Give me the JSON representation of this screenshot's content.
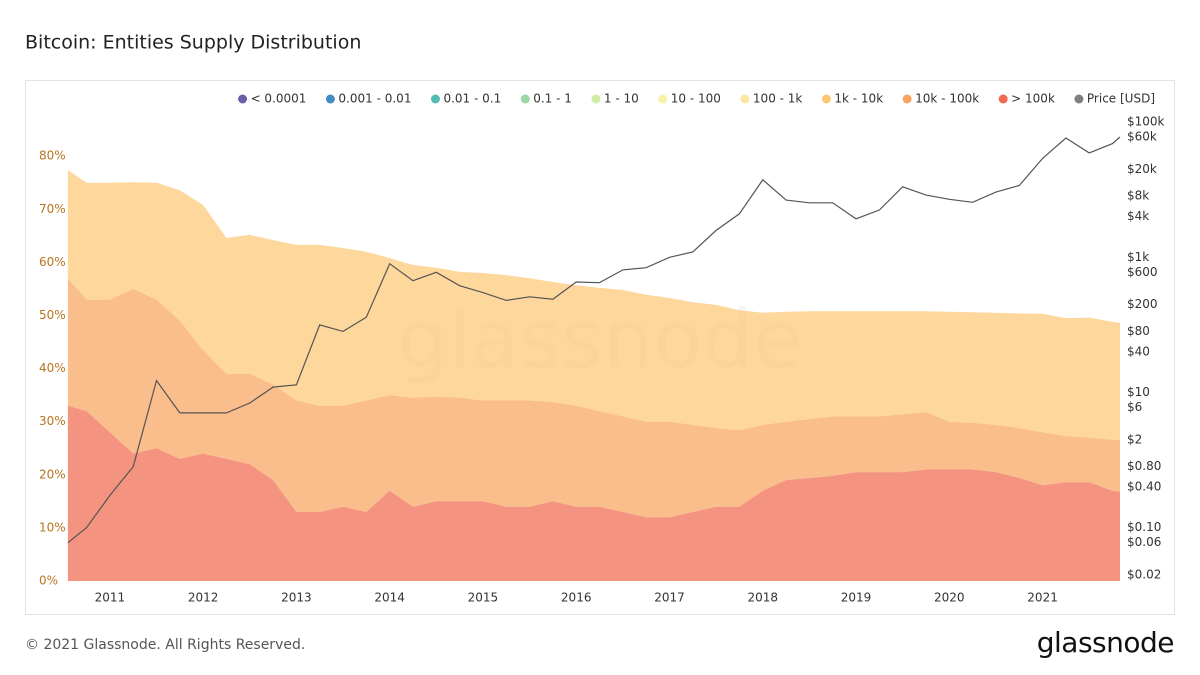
{
  "chart_data": {
    "type": "stacked_area",
    "title": "Bitcoin: Entities Supply Distribution",
    "watermark": "glassnode",
    "footer": "© 2021 Glassnode. All Rights Reserved.",
    "logo": "glassnode",
    "x": [
      2010.55,
      2010.75,
      2011,
      2011.25,
      2011.5,
      2011.75,
      2012,
      2012.25,
      2012.5,
      2012.75,
      2013,
      2013.25,
      2013.5,
      2013.75,
      2014,
      2014.25,
      2014.5,
      2014.75,
      2015,
      2015.25,
      2015.5,
      2015.75,
      2016,
      2016.25,
      2016.5,
      2016.75,
      2017,
      2017.25,
      2017.5,
      2017.75,
      2018,
      2018.25,
      2018.5,
      2018.75,
      2019,
      2019.25,
      2019.5,
      2019.75,
      2020,
      2020.25,
      2020.5,
      2020.75,
      2021,
      2021.25,
      2021.5,
      2021.75,
      2021.83
    ],
    "xlim": [
      2010.53,
      2021.83
    ],
    "xticks": [
      2011,
      2012,
      2013,
      2014,
      2015,
      2016,
      2017,
      2018,
      2019,
      2020,
      2021
    ],
    "ylim": [
      0,
      88
    ],
    "yticks": [
      {
        "value": 0,
        "label": "0%"
      },
      {
        "value": 10,
        "label": "10%"
      },
      {
        "value": 20,
        "label": "20%"
      },
      {
        "value": 30,
        "label": "30%"
      },
      {
        "value": 40,
        "label": "40%"
      },
      {
        "value": 50,
        "label": "50%"
      },
      {
        "value": 60,
        "label": "60%"
      },
      {
        "value": 70,
        "label": "70%"
      },
      {
        "value": 80,
        "label": "80%"
      }
    ],
    "y2lim": [
      0.0163,
      132800
    ],
    "y2_log_scale": true,
    "y2ticks": [
      {
        "value": 100000,
        "label": "$100k"
      },
      {
        "value": 60000,
        "label": "$60k"
      },
      {
        "value": 20000,
        "label": "$20k"
      },
      {
        "value": 8000,
        "label": "$8k"
      },
      {
        "value": 4000,
        "label": "$4k"
      },
      {
        "value": 1000,
        "label": "$1k"
      },
      {
        "value": 600,
        "label": "$600"
      },
      {
        "value": 200,
        "label": "$200"
      },
      {
        "value": 80,
        "label": "$80"
      },
      {
        "value": 40,
        "label": "$40"
      },
      {
        "value": 10,
        "label": "$10"
      },
      {
        "value": 6,
        "label": "$6"
      },
      {
        "value": 2,
        "label": "$2"
      },
      {
        "value": 0.8,
        "label": "$0.80"
      },
      {
        "value": 0.4,
        "label": "$0.40"
      },
      {
        "value": 0.1,
        "label": "$0.10"
      },
      {
        "value": 0.06,
        "label": "$0.06"
      },
      {
        "value": 0.02,
        "label": "$0.02"
      }
    ],
    "grid": false,
    "legend": "top",
    "hidden_series": [
      {
        "name": "< 0.0001",
        "color": "#5b4ea0"
      },
      {
        "name": "0.001 - 0.01",
        "color": "#2f7fbf"
      },
      {
        "name": "0.01 - 0.1",
        "color": "#3fb5aa"
      },
      {
        "name": "0.1 - 1",
        "color": "#8fd39a"
      },
      {
        "name": "1 - 10",
        "color": "#c9ea98"
      },
      {
        "name": "10 - 100",
        "color": "#f6f0a0"
      },
      {
        "name": "100 - 1k",
        "color": "#fde39a"
      }
    ],
    "series": [
      {
        "name": "1k - 10k",
        "color": "#fdc876",
        "values": [
          20.4,
          22,
          22,
          20.1,
          22,
          24.6,
          27.3,
          25.6,
          26.2,
          27.2,
          29.3,
          30.3,
          29.7,
          28,
          25.8,
          25,
          24.3,
          23.7,
          24,
          23.6,
          23,
          22.6,
          22.7,
          23.2,
          23.8,
          23.9,
          23.3,
          23.1,
          23.2,
          22.6,
          21.1,
          20.7,
          20.3,
          19.8,
          19.8,
          19.8,
          19.4,
          19,
          20.7,
          20.8,
          21.1,
          21.6,
          22.3,
          22.2,
          22.6,
          22.2,
          22
        ]
      },
      {
        "name": "10k - 100k",
        "color": "#f8a35f",
        "values": [
          24,
          21,
          25,
          31,
          28,
          26,
          19.5,
          16,
          17,
          18,
          21,
          20,
          19,
          21,
          18,
          20.5,
          19.7,
          19.5,
          19,
          20,
          20,
          18.7,
          19,
          18,
          18,
          18,
          18,
          16.4,
          14.8,
          14.4,
          12.4,
          11,
          11.1,
          11.2,
          10.5,
          10.5,
          10.9,
          10.8,
          9,
          8.8,
          8.9,
          9.4,
          10,
          8.7,
          8.4,
          9.6,
          9.8
        ]
      },
      {
        "name": "> 100k",
        "color": "#ef6a4f",
        "values": [
          33,
          32,
          28,
          24,
          25,
          23,
          24,
          23,
          22,
          19,
          13,
          13,
          14,
          13,
          17,
          14,
          15,
          15,
          15,
          14,
          14,
          15,
          14,
          14,
          13,
          12,
          12,
          13,
          14,
          14,
          17,
          19,
          19.4,
          19.8,
          20.5,
          20.5,
          20.5,
          21,
          21,
          21,
          20.5,
          19.4,
          18,
          18.6,
          18.6,
          17,
          16.8
        ]
      },
      {
        "name": "Price [USD]",
        "color": "#7f7f7f",
        "axis": "y2",
        "type": "line",
        "values": [
          0.06,
          0.1,
          0.3,
          0.8,
          15,
          5,
          5,
          5,
          7,
          12,
          13,
          100,
          80,
          130,
          800,
          450,
          600,
          380,
          300,
          230,
          260,
          240,
          430,
          420,
          650,
          700,
          1000,
          1200,
          2500,
          4400,
          14000,
          7000,
          6400,
          6400,
          3700,
          5000,
          11000,
          8300,
          7200,
          6500,
          9200,
          11500,
          29000,
          58000,
          35000,
          48000,
          60000
        ]
      }
    ]
  }
}
